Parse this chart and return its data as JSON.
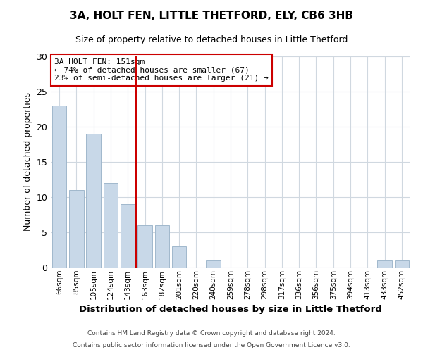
{
  "title": "3A, HOLT FEN, LITTLE THETFORD, ELY, CB6 3HB",
  "subtitle": "Size of property relative to detached houses in Little Thetford",
  "xlabel": "Distribution of detached houses by size in Little Thetford",
  "ylabel": "Number of detached properties",
  "bar_labels": [
    "66sqm",
    "85sqm",
    "105sqm",
    "124sqm",
    "143sqm",
    "163sqm",
    "182sqm",
    "201sqm",
    "220sqm",
    "240sqm",
    "259sqm",
    "278sqm",
    "298sqm",
    "317sqm",
    "336sqm",
    "356sqm",
    "375sqm",
    "394sqm",
    "413sqm",
    "433sqm",
    "452sqm"
  ],
  "bar_values": [
    23,
    11,
    19,
    12,
    9,
    6,
    6,
    3,
    0,
    1,
    0,
    0,
    0,
    0,
    0,
    0,
    0,
    0,
    0,
    1,
    1
  ],
  "bar_color": "#c8d8e8",
  "bar_edge_color": "#a0b8cc",
  "ylim": [
    0,
    30
  ],
  "yticks": [
    0,
    5,
    10,
    15,
    20,
    25,
    30
  ],
  "vline_x": 4.5,
  "vline_color": "#cc0000",
  "annotation_line1": "3A HOLT FEN: 151sqm",
  "annotation_line2": "← 74% of detached houses are smaller (67)",
  "annotation_line3": "23% of semi-detached houses are larger (21) →",
  "annotation_box_color": "#ffffff",
  "annotation_box_edge": "#cc0000",
  "footer1": "Contains HM Land Registry data © Crown copyright and database right 2024.",
  "footer2": "Contains public sector information licensed under the Open Government Licence v3.0.",
  "background_color": "#ffffff",
  "grid_color": "#d0d8e0"
}
